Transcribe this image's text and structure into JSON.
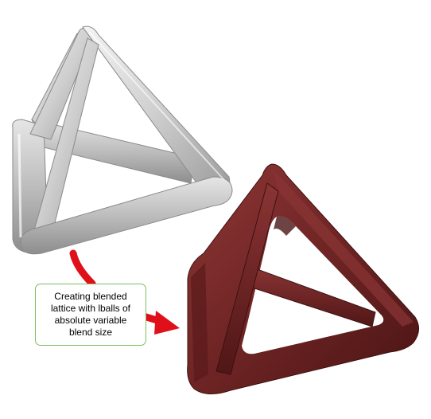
{
  "callout": {
    "text": "Creating blended\nlattice with lballs of\nabsolute variable\nblend size"
  },
  "colors": {
    "input_lattice": "#d2d2d2",
    "blended_lattice": "#6e2424",
    "arrow": "#e0101a",
    "callout_border": "#7cbf5c"
  },
  "icons": [
    "process-arrow-icon"
  ]
}
